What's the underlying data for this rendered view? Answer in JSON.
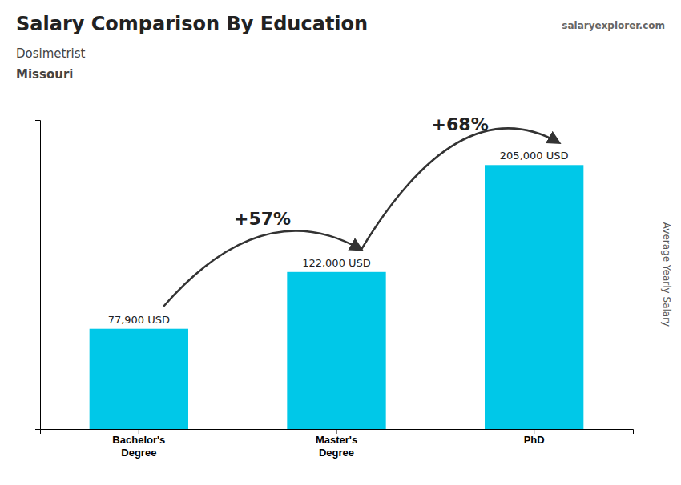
{
  "chart_data": {
    "type": "bar",
    "title": "Salary Comparison By Education",
    "subtitle": [
      "Dosimetrist",
      "Missouri"
    ],
    "source": "salaryexplorer.com",
    "categories": [
      "Bachelor's\nDegree",
      "Master's\nDegree",
      "PhD"
    ],
    "values": [
      77900,
      122000,
      205000
    ],
    "value_labels": [
      "77,900 USD",
      "122,000 USD",
      "205,000 USD"
    ],
    "data_labels": true,
    "annotations": [
      "+57%",
      "+68%"
    ],
    "y_label": "Average Yearly Salary",
    "color": "#00c8e8",
    "ylim": [
      0,
      240000
    ],
    "tick_labels": "x",
    "grid": false
  }
}
